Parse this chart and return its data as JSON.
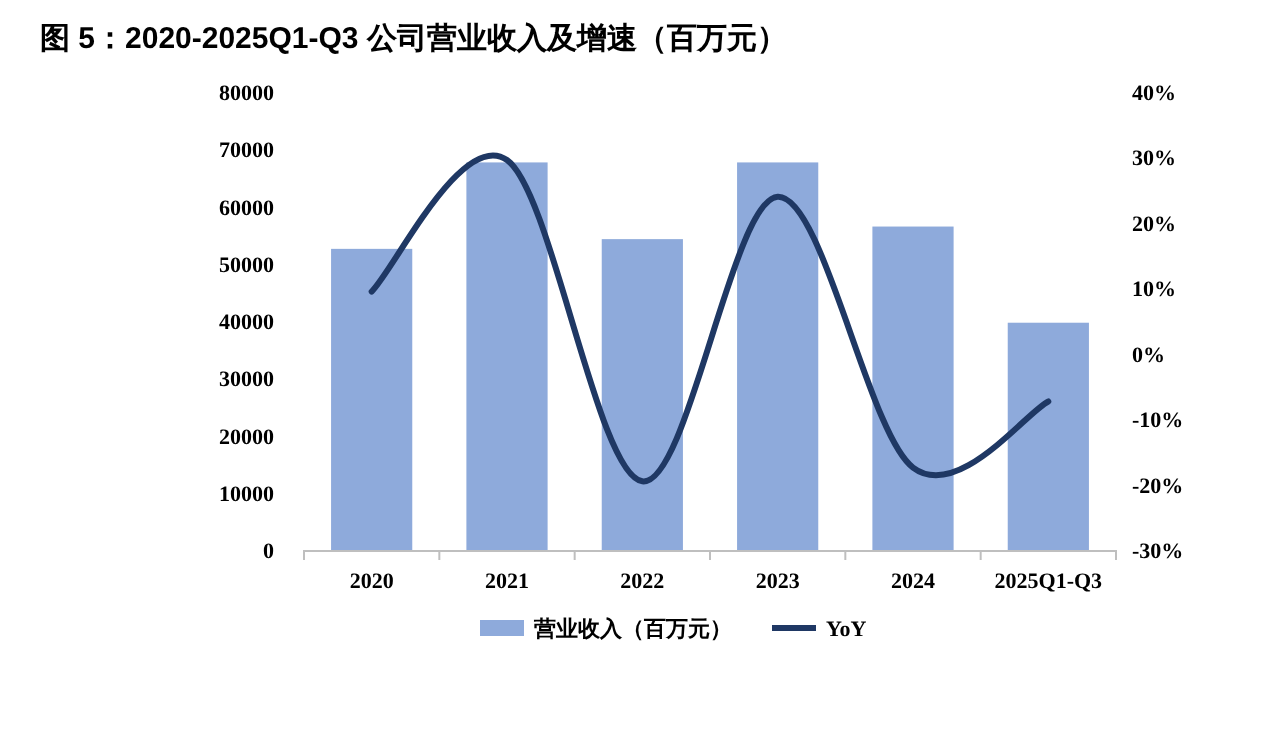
{
  "chart_data": {
    "type": "bar",
    "title": "图 5：2020-2025Q1-Q3 公司营业收入及增速（百万元）",
    "categories": [
      "2020",
      "2021",
      "2022",
      "2023",
      "2024",
      "2025Q1-Q3"
    ],
    "series": [
      {
        "name": "营业收入（百万元）",
        "color": "#8eaadb",
        "values": [
          52600,
          67700,
          54300,
          67700,
          56500,
          39700
        ]
      },
      {
        "name": "YoY",
        "type": "line",
        "axis": "y2",
        "color": "#1f3864",
        "values": [
          9.5,
          29.6,
          -19.5,
          24,
          -17.4,
          -7.3
        ]
      }
    ],
    "ylim": [
      0,
      80000
    ],
    "yticks": [
      0,
      10000,
      20000,
      30000,
      40000,
      50000,
      60000,
      70000,
      80000
    ],
    "y2lim": [
      -30,
      40
    ],
    "y2ticks": [
      {
        "value": -30,
        "label": "-30%"
      },
      {
        "value": -20,
        "label": "-20%"
      },
      {
        "value": -10,
        "label": "-10%"
      },
      {
        "value": 0,
        "label": "0%"
      },
      {
        "value": 10,
        "label": "10%"
      },
      {
        "value": 20,
        "label": "20%"
      },
      {
        "value": 30,
        "label": "30%"
      },
      {
        "value": 40,
        "label": "40%"
      }
    ],
    "legend": "bottom",
    "grid": false
  }
}
